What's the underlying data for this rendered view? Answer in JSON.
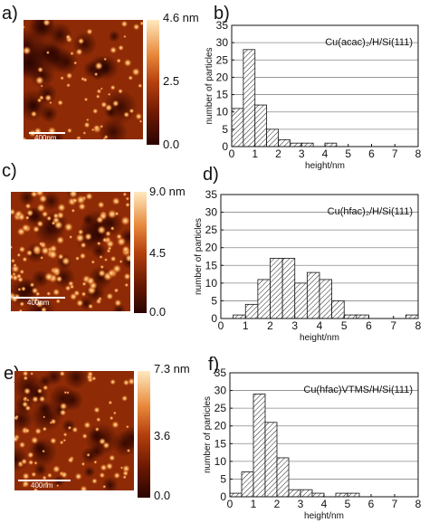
{
  "panels": [
    {
      "image_label": "a)",
      "hist_label": "b)",
      "colorbar": {
        "max_label": "4.6 nm",
        "mid_label": "2.5",
        "min_label": "0.0"
      },
      "scalebar": "400nm"
    },
    {
      "image_label": "c)",
      "hist_label": "d)",
      "colorbar": {
        "max_label": "9.0 nm",
        "mid_label": "4.5",
        "min_label": "0.0"
      },
      "scalebar": "400nm"
    },
    {
      "image_label": "e)",
      "hist_label": "f)",
      "colorbar": {
        "max_label": "7.3 nm",
        "mid_label": "3.6",
        "min_label": "0.0"
      },
      "scalebar": "400nm"
    }
  ],
  "colors": {
    "hist_fill": "#ffffff",
    "hist_hatch": "#222222",
    "grid": "#888888",
    "afm_dark": "#2a0400",
    "afm_mid": "#b5400e",
    "afm_bright": "#ffe9bf"
  },
  "chart_data": [
    {
      "type": "bar",
      "annotation": "Cu(acac)₂/H/Si(111)",
      "xlabel": "height/nm",
      "ylabel": "number of particles",
      "bin_width": 0.5,
      "bin_starts": [
        0,
        0.5,
        1,
        1.5,
        2,
        2.5,
        3,
        3.5,
        4,
        4.5,
        5,
        5.5,
        6,
        6.5,
        7,
        7.5
      ],
      "values": [
        11,
        28,
        12,
        5,
        2,
        1,
        1,
        0,
        1,
        0,
        0,
        0,
        0,
        0,
        0,
        0
      ],
      "xlim": [
        0,
        8
      ],
      "ylim": [
        0,
        35
      ],
      "xticks": [
        0,
        1,
        2,
        3,
        4,
        5,
        6,
        7,
        8
      ],
      "yticks": [
        0,
        5,
        10,
        15,
        20,
        25,
        30,
        35
      ],
      "grid": "horizontal"
    },
    {
      "type": "bar",
      "annotation": "Cu(hfac)₂/H/Si(111)",
      "xlabel": "height/nm",
      "ylabel": "number of particles",
      "bin_width": 0.5,
      "bin_starts": [
        0,
        0.5,
        1,
        1.5,
        2,
        2.5,
        3,
        3.5,
        4,
        4.5,
        5,
        5.5,
        6,
        6.5,
        7,
        7.5
      ],
      "values": [
        0,
        1,
        4,
        11,
        17,
        17,
        10,
        13,
        11,
        5,
        1,
        1,
        0,
        0,
        0,
        1
      ],
      "xlim": [
        0,
        8
      ],
      "ylim": [
        0,
        35
      ],
      "xticks": [
        0,
        1,
        2,
        3,
        4,
        5,
        6,
        7,
        8
      ],
      "yticks": [
        0,
        5,
        10,
        15,
        20,
        25,
        30,
        35
      ],
      "grid": "horizontal"
    },
    {
      "type": "bar",
      "annotation": "Cu(hfac)VTMS/H/Si(111)",
      "xlabel": "height/nm",
      "ylabel": "number of particles",
      "bin_width": 0.5,
      "bin_starts": [
        0,
        0.5,
        1,
        1.5,
        2,
        2.5,
        3,
        3.5,
        4,
        4.5,
        5,
        5.5,
        6,
        6.5,
        7,
        7.5
      ],
      "values": [
        1,
        7,
        29,
        21,
        11,
        2,
        2,
        1,
        0,
        1,
        1,
        0,
        0,
        0,
        0,
        0
      ],
      "xlim": [
        0,
        8
      ],
      "ylim": [
        0,
        35
      ],
      "xticks": [
        0,
        1,
        2,
        3,
        4,
        5,
        6,
        7,
        8
      ],
      "yticks": [
        0,
        5,
        10,
        15,
        20,
        25,
        30,
        35
      ],
      "grid": "horizontal"
    }
  ]
}
